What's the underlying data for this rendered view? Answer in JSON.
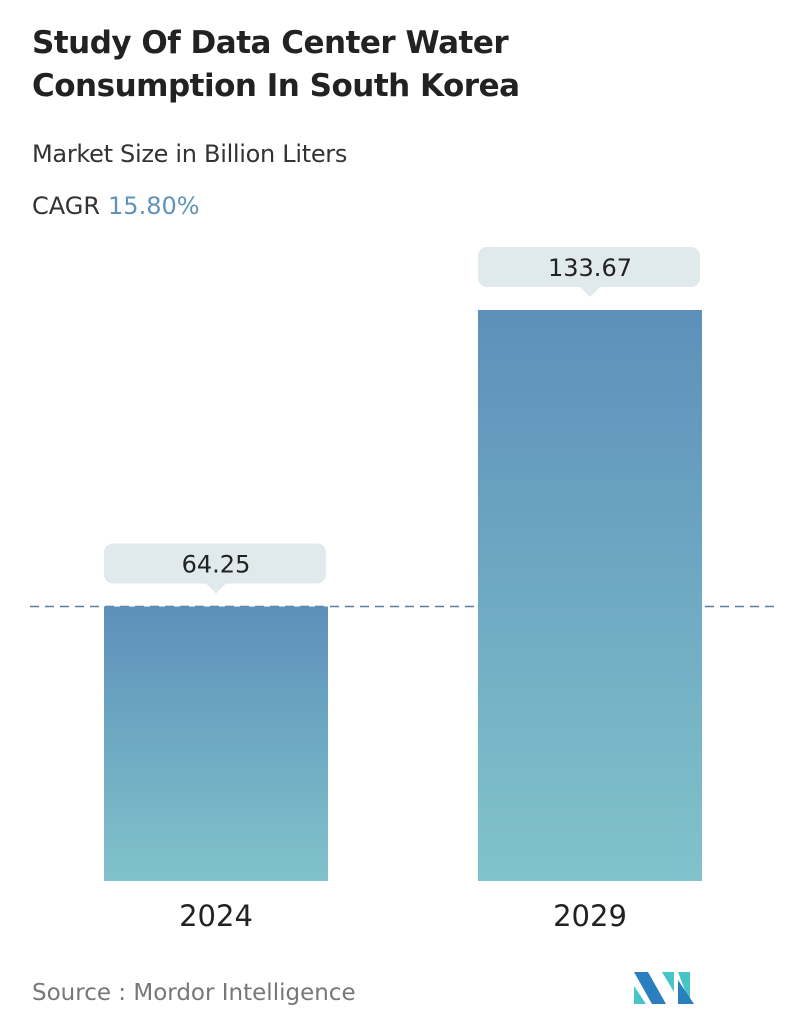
{
  "title": "Study Of Data Center Water Consumption In South Korea",
  "subtitle": "Market Size in Billion Liters",
  "cagr_label": "CAGR",
  "cagr_value": "15.80%",
  "source": "Source :  Mordor Intelligence",
  "logo_text": "Mordor Intelligence",
  "colors": {
    "bar_top": "#5d90ba",
    "bar_bottom": "#80c3cb",
    "label_bg": "#e0e9ec",
    "dash": "#5a7e9e",
    "accent": "#5f94bb"
  },
  "chart_data": {
    "type": "bar",
    "title": "Study Of Data Center Water Consumption In South Korea",
    "ylabel": "Market Size in Billion Liters",
    "categories": [
      "2024",
      "2029"
    ],
    "values": [
      64.25,
      133.67
    ],
    "labels": [
      "64.25",
      "133.67"
    ],
    "ylim": [
      0,
      133.67
    ],
    "grid": false,
    "reference_line": 64.25
  }
}
